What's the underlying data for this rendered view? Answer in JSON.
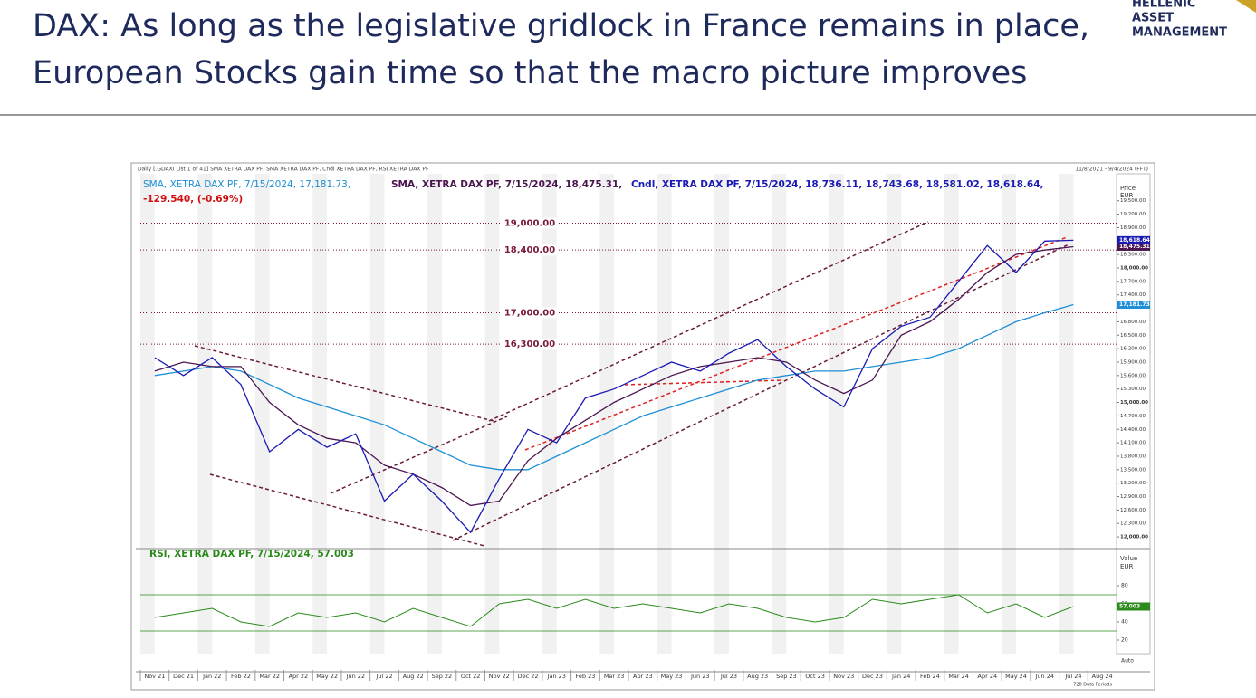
{
  "header": {
    "title_line1": "DAX: As long as the legislative gridlock in France remains in place,",
    "title_line2": "European Stocks gain time so that the macro picture improves",
    "logo": [
      "HELLENIC",
      "ASSET",
      "MANAGEMENT"
    ]
  },
  "chart_data": {
    "type": "line",
    "info": "Daily [.GDAXI List 1 of 41] SMA XETRA DAX PF, SMA XETRA DAX PF, Cndl XETRA DAX PF, RSI XETRA DAX PF",
    "range_label": "11/8/2021 - 9/4/2024 (FFT)",
    "change_label": "-129.540, (-0.69%)",
    "price_axis_label": "Price",
    "price_axis_unit": "EUR",
    "rsi_axis_label": "Value",
    "rsi_axis_unit": "EUR",
    "auto_label": "Auto",
    "periods_label": "728 Data Periods",
    "categories": [
      "Nov 21",
      "Dec 21",
      "Jan 22",
      "Feb 22",
      "Mar 22",
      "Apr 22",
      "May 22",
      "Jun 22",
      "Jul 22",
      "Aug 22",
      "Sep 22",
      "Oct 22",
      "Nov 22",
      "Dec 22",
      "Jan 23",
      "Feb 23",
      "Mar 23",
      "Apr 23",
      "May 23",
      "Jun 23",
      "Jul 23",
      "Aug 23",
      "Sep 23",
      "Oct 23",
      "Nov 23",
      "Dec 23",
      "Jan 24",
      "Feb 24",
      "Mar 24",
      "Apr 24",
      "May 24",
      "Jun 24",
      "Jul 24",
      "Aug 24"
    ],
    "series": [
      {
        "name": "SMA, XETRA DAX PF, 7/15/2024, 17,181.73,",
        "color": "#1e8fd6",
        "last_label": "17,181.73",
        "values": [
          15600,
          15700,
          15800,
          15700,
          15400,
          15100,
          14900,
          14700,
          14500,
          14200,
          13900,
          13600,
          13500,
          13500,
          13800,
          14100,
          14400,
          14700,
          14900,
          15100,
          15300,
          15500,
          15600,
          15700,
          15700,
          15800,
          15900,
          16000,
          16200,
          16500,
          16800,
          17000,
          17181.73,
          null
        ]
      },
      {
        "name": "SMA, XETRA DAX PF, 7/15/2024, 18,475.31,",
        "color": "#4b1650",
        "last_label": "18,475.31",
        "values": [
          15700,
          15900,
          15800,
          15800,
          15000,
          14500,
          14200,
          14100,
          13600,
          13400,
          13100,
          12700,
          12800,
          13700,
          14200,
          14600,
          15000,
          15300,
          15600,
          15800,
          15900,
          16000,
          15900,
          15500,
          15200,
          15500,
          16500,
          16800,
          17300,
          17900,
          18300,
          18400,
          18475.31,
          null
        ]
      },
      {
        "name": "Cndl, XETRA DAX PF, 7/15/2024, 18,736.11, 18,743.68, 18,581.02, 18,618.64,",
        "color": "#1a1ab4",
        "last_label": "18,618.64",
        "values": [
          16000,
          15600,
          16000,
          15400,
          13900,
          14400,
          14000,
          14300,
          12800,
          13400,
          12800,
          12100,
          13300,
          14400,
          14100,
          15100,
          15300,
          15600,
          15900,
          15700,
          16100,
          16400,
          15800,
          15300,
          14900,
          16200,
          16700,
          16900,
          17700,
          18500,
          17900,
          18600,
          18618.64,
          null
        ]
      },
      {
        "name": "RSI, XETRA DAX PF, 7/15/2024, 57.003",
        "color": "#2a8a1a",
        "axis": "y2",
        "last_label": "57.003",
        "values": [
          45,
          50,
          55,
          40,
          35,
          50,
          45,
          50,
          40,
          55,
          45,
          35,
          60,
          65,
          55,
          65,
          55,
          60,
          55,
          50,
          60,
          55,
          45,
          40,
          45,
          65,
          60,
          65,
          70,
          50,
          60,
          45,
          57.003,
          null
        ]
      }
    ],
    "levels": [
      {
        "value": 19000,
        "label": "19,000.00"
      },
      {
        "value": 18400,
        "label": "18,400.00"
      },
      {
        "value": 17000,
        "label": "17,000.00"
      },
      {
        "value": 16300,
        "label": "16,300.00"
      }
    ],
    "ylim": [
      11800,
      20100
    ],
    "yticks": [
      {
        "value": 12000,
        "label": "12,000.00"
      },
      {
        "value": 12300,
        "label": "12,300.00"
      },
      {
        "value": 12600,
        "label": "12,600.00"
      },
      {
        "value": 12900,
        "label": "12,900.00"
      },
      {
        "value": 13200,
        "label": "13,200.00"
      },
      {
        "value": 13500,
        "label": "13,500.00"
      },
      {
        "value": 13800,
        "label": "13,800.00"
      },
      {
        "value": 14100,
        "label": "14,100.00"
      },
      {
        "value": 14400,
        "label": "14,400.00"
      },
      {
        "value": 14700,
        "label": "14,700.00"
      },
      {
        "value": 15000,
        "label": "15,000.00"
      },
      {
        "value": 15300,
        "label": "15,300.00"
      },
      {
        "value": 15600,
        "label": "15,600.00"
      },
      {
        "value": 15900,
        "label": "15,900.00"
      },
      {
        "value": 16200,
        "label": "16,200.00"
      },
      {
        "value": 16500,
        "label": "16,500.00"
      },
      {
        "value": 16800,
        "label": "16,800.00"
      },
      {
        "value": 17400,
        "label": "17,400.00"
      },
      {
        "value": 17700,
        "label": "17,700.00"
      },
      {
        "value": 18000,
        "label": "18,000.00"
      },
      {
        "value": 18300,
        "label": "18,300.00"
      },
      {
        "value": 18900,
        "label": "18,900.00"
      },
      {
        "value": 19200,
        "label": "19,200.00"
      },
      {
        "value": 19500,
        "label": "19,500.00"
      }
    ],
    "y2lim": [
      5,
      117
    ],
    "y2ticks": [
      20,
      40,
      60,
      80
    ],
    "y2guides": [
      30,
      70
    ]
  }
}
